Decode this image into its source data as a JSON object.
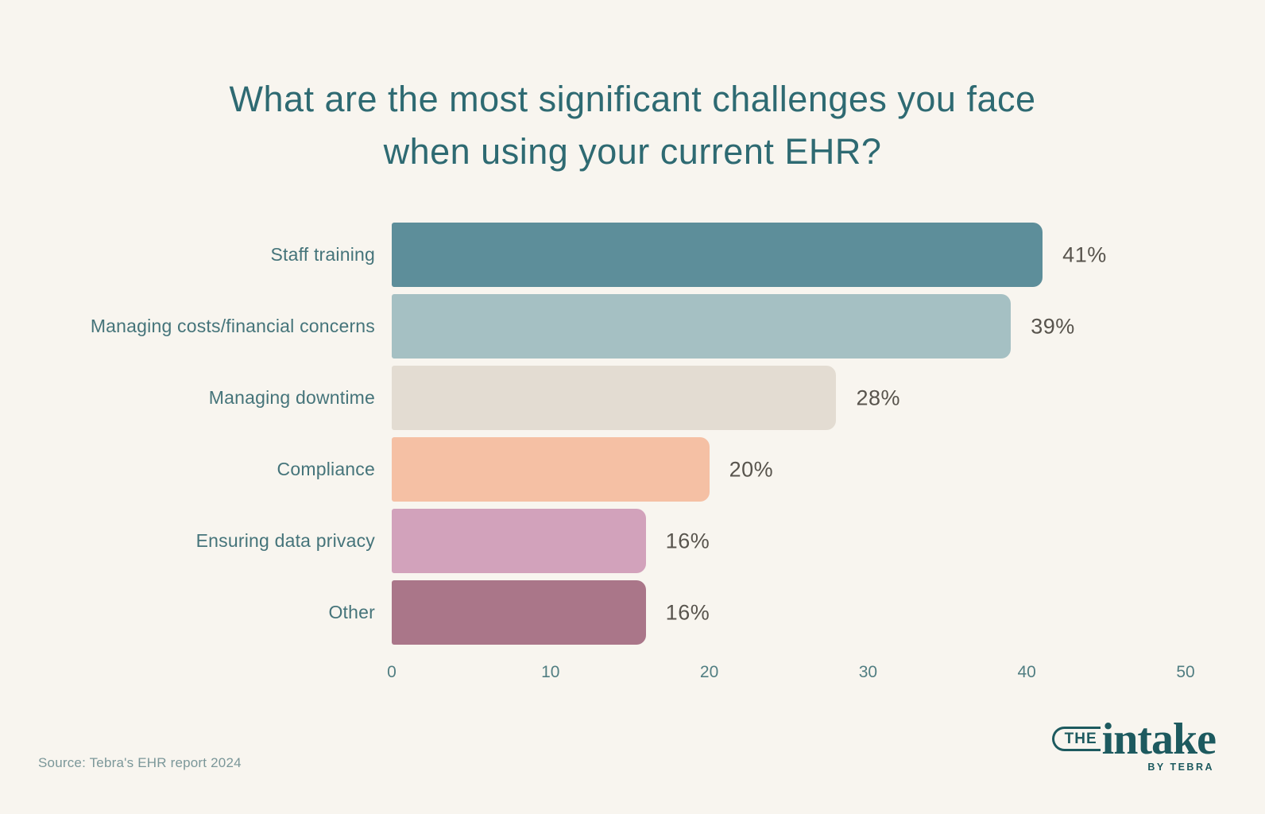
{
  "page": {
    "background": "#f8f5ef"
  },
  "title_lines": [
    "What are the most significant challenges you face",
    "when using your current EHR?"
  ],
  "chart_data": {
    "type": "bar",
    "orientation": "horizontal",
    "title": "What are the most significant challenges you face when using your current EHR?",
    "categories": [
      "Staff training",
      "Managing costs/financial concerns",
      "Managing downtime",
      "Compliance",
      "Ensuring data privacy",
      "Other"
    ],
    "values": [
      41,
      39,
      28,
      20,
      16,
      16
    ],
    "value_labels": [
      "41%",
      "39%",
      "28%",
      "20%",
      "16%",
      "16%"
    ],
    "bar_colors": [
      "#5d8e9a",
      "#a5c0c3",
      "#e3dcd2",
      "#f5c0a4",
      "#d2a2bb",
      "#aa7689"
    ],
    "xlim": [
      0,
      50
    ],
    "x_ticks": [
      0,
      10,
      20,
      30,
      40,
      50
    ],
    "grid": false,
    "legend": false
  },
  "footer": {
    "source": "Source: Tebra's EHR report 2024",
    "logo": {
      "the": "THE",
      "intake": "intake",
      "byline": "BY TEBRA"
    }
  },
  "colors": {
    "background": "#f8f5ef",
    "title": "#2e6a72",
    "category_label": "#45747a",
    "value_label": "#58544d",
    "tick_label": "#517e82",
    "source": "#7b9799",
    "logo": "#1d5a5f"
  }
}
